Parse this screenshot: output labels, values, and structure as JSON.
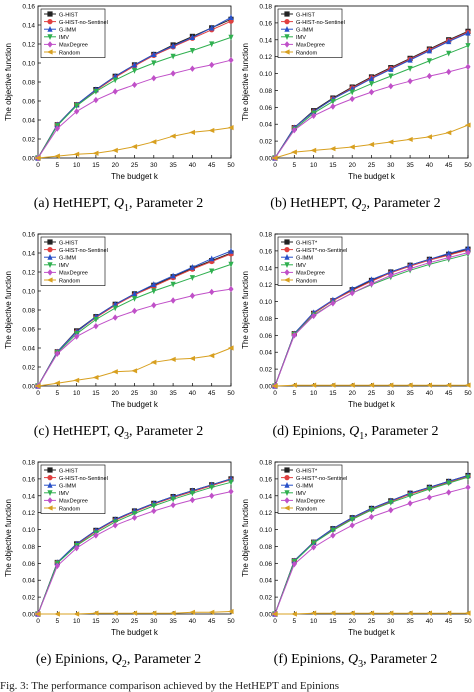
{
  "footer_fragment": "Fig. 3:  The performance comparison achieved by the HetHEPT and Epinions",
  "chart_data": [
    {
      "type": "line",
      "caption": {
        "tag": "(a)",
        "dataset": "HetHEPT,",
        "q": "Q",
        "q_sub": "1",
        "param": ", Parameter 2"
      },
      "xlabel": "The budget k",
      "ylabel": "The objective function",
      "x": [
        0,
        5,
        10,
        15,
        20,
        25,
        30,
        35,
        40,
        45,
        50
      ],
      "xticks": [
        "0",
        "5",
        "10",
        "15",
        "20",
        "25",
        "30",
        "35",
        "40",
        "45",
        "50"
      ],
      "ylim": [
        0,
        0.16
      ],
      "yticks": [
        "0.00",
        "0.02",
        "0.04",
        "0.06",
        "0.08",
        "0.10",
        "0.12",
        "0.14",
        "0.16"
      ],
      "legend": "top-left",
      "grid": false,
      "series": [
        {
          "name": "G-HIST",
          "color": "#222222",
          "marker": "square",
          "values": [
            0.0,
            0.035,
            0.056,
            0.072,
            0.086,
            0.098,
            0.109,
            0.119,
            0.128,
            0.137,
            0.146
          ]
        },
        {
          "name": "G-HIST-no-Sentinel",
          "color": "#e04040",
          "marker": "circle",
          "values": [
            0.0,
            0.035,
            0.056,
            0.071,
            0.085,
            0.097,
            0.108,
            0.117,
            0.126,
            0.135,
            0.144
          ]
        },
        {
          "name": "G-IMM",
          "color": "#2850c8",
          "marker": "triangle",
          "values": [
            0.0,
            0.035,
            0.056,
            0.072,
            0.086,
            0.098,
            0.109,
            0.118,
            0.127,
            0.137,
            0.148
          ]
        },
        {
          "name": "IMV",
          "color": "#30b050",
          "marker": "tri-down",
          "values": [
            0.0,
            0.034,
            0.055,
            0.07,
            0.082,
            0.092,
            0.1,
            0.107,
            0.113,
            0.12,
            0.127
          ]
        },
        {
          "name": "MaxDegree",
          "color": "#c050c8",
          "marker": "diamond",
          "values": [
            0.0,
            0.031,
            0.049,
            0.061,
            0.07,
            0.077,
            0.084,
            0.089,
            0.094,
            0.098,
            0.103
          ]
        },
        {
          "name": "Random",
          "color": "#d8a020",
          "marker": "tri-left",
          "values": [
            0.0,
            0.002,
            0.004,
            0.005,
            0.008,
            0.012,
            0.017,
            0.023,
            0.027,
            0.029,
            0.032
          ]
        }
      ]
    },
    {
      "type": "line",
      "caption": {
        "tag": "(b)",
        "dataset": "HetHEPT,",
        "q": "Q",
        "q_sub": "2",
        "param": ", Parameter 2"
      },
      "xlabel": "The budget k",
      "ylabel": "The objective function",
      "x": [
        0,
        5,
        10,
        15,
        20,
        25,
        30,
        35,
        40,
        45,
        50
      ],
      "xticks": [
        "0",
        "5",
        "10",
        "15",
        "20",
        "25",
        "30",
        "35",
        "40",
        "45",
        "50"
      ],
      "ylim": [
        0,
        0.18
      ],
      "yticks": [
        "0.00",
        "0.02",
        "0.04",
        "0.06",
        "0.08",
        "0.10",
        "0.12",
        "0.14",
        "0.16",
        "0.18"
      ],
      "legend": "top-left",
      "grid": false,
      "series": [
        {
          "name": "G-HIST",
          "color": "#222222",
          "marker": "square",
          "values": [
            0.0,
            0.036,
            0.056,
            0.071,
            0.084,
            0.096,
            0.107,
            0.118,
            0.129,
            0.14,
            0.15
          ]
        },
        {
          "name": "G-HIST-no-Sentinel",
          "color": "#e04040",
          "marker": "circle",
          "values": [
            0.0,
            0.036,
            0.055,
            0.07,
            0.083,
            0.095,
            0.106,
            0.117,
            0.128,
            0.139,
            0.149
          ]
        },
        {
          "name": "G-IMM",
          "color": "#2850c8",
          "marker": "triangle",
          "values": [
            0.0,
            0.036,
            0.055,
            0.07,
            0.082,
            0.094,
            0.105,
            0.116,
            0.127,
            0.138,
            0.148
          ]
        },
        {
          "name": "IMV",
          "color": "#30b050",
          "marker": "tri-down",
          "values": [
            0.0,
            0.034,
            0.053,
            0.067,
            0.078,
            0.088,
            0.097,
            0.106,
            0.115,
            0.124,
            0.133
          ]
        },
        {
          "name": "MaxDegree",
          "color": "#c050c8",
          "marker": "diamond",
          "values": [
            0.0,
            0.033,
            0.05,
            0.061,
            0.07,
            0.078,
            0.085,
            0.091,
            0.097,
            0.102,
            0.108
          ]
        },
        {
          "name": "Random",
          "color": "#d8a020",
          "marker": "tri-left",
          "values": [
            0.0,
            0.007,
            0.009,
            0.011,
            0.013,
            0.016,
            0.019,
            0.022,
            0.025,
            0.03,
            0.039
          ]
        }
      ]
    },
    {
      "type": "line",
      "caption": {
        "tag": "(c)",
        "dataset": "HetHEPT,",
        "q": "Q",
        "q_sub": "3",
        "param": ", Parameter 2"
      },
      "xlabel": "The budget k",
      "ylabel": "The objective function",
      "x": [
        0,
        5,
        10,
        15,
        20,
        25,
        30,
        35,
        40,
        45,
        50
      ],
      "xticks": [
        "0",
        "5",
        "10",
        "15",
        "20",
        "25",
        "30",
        "35",
        "40",
        "45",
        "50"
      ],
      "ylim": [
        0,
        0.16
      ],
      "yticks": [
        "0.00",
        "0.02",
        "0.04",
        "0.06",
        "0.08",
        "0.10",
        "0.12",
        "0.14",
        "0.16"
      ],
      "legend": "top-left",
      "grid": false,
      "series": [
        {
          "name": "G-HIST",
          "color": "#222222",
          "marker": "square",
          "values": [
            0.0,
            0.036,
            0.058,
            0.073,
            0.086,
            0.097,
            0.106,
            0.115,
            0.124,
            0.132,
            0.14
          ]
        },
        {
          "name": "G-HIST-no-Sentinel",
          "color": "#e04040",
          "marker": "circle",
          "values": [
            0.0,
            0.036,
            0.057,
            0.072,
            0.085,
            0.096,
            0.105,
            0.114,
            0.123,
            0.131,
            0.139
          ]
        },
        {
          "name": "G-IMM",
          "color": "#2850c8",
          "marker": "triangle",
          "values": [
            0.0,
            0.036,
            0.057,
            0.073,
            0.086,
            0.097,
            0.107,
            0.116,
            0.125,
            0.134,
            0.142
          ]
        },
        {
          "name": "IMV",
          "color": "#30b050",
          "marker": "tri-down",
          "values": [
            0.0,
            0.035,
            0.055,
            0.07,
            0.082,
            0.092,
            0.1,
            0.107,
            0.114,
            0.121,
            0.128
          ]
        },
        {
          "name": "MaxDegree",
          "color": "#c050c8",
          "marker": "diamond",
          "values": [
            0.0,
            0.034,
            0.052,
            0.063,
            0.072,
            0.079,
            0.085,
            0.09,
            0.095,
            0.099,
            0.102
          ]
        },
        {
          "name": "Random",
          "color": "#d8a020",
          "marker": "tri-left",
          "values": [
            0.0,
            0.003,
            0.006,
            0.009,
            0.015,
            0.016,
            0.025,
            0.028,
            0.029,
            0.032,
            0.04
          ]
        }
      ]
    },
    {
      "type": "line",
      "caption": {
        "tag": "(d)",
        "dataset": "Epinions,",
        "q": "Q",
        "q_sub": "1",
        "param": ", Parameter 2"
      },
      "xlabel": "The budget k",
      "ylabel": "The objective function",
      "x": [
        0,
        5,
        10,
        15,
        20,
        25,
        30,
        35,
        40,
        45,
        50
      ],
      "xticks": [
        "0",
        "5",
        "10",
        "15",
        "20",
        "25",
        "30",
        "35",
        "40",
        "45",
        "50"
      ],
      "ylim": [
        0,
        0.18
      ],
      "yticks": [
        "0.00",
        "0.02",
        "0.04",
        "0.06",
        "0.08",
        "0.10",
        "0.12",
        "0.14",
        "0.16",
        "0.18"
      ],
      "legend": "top-left",
      "grid": false,
      "series": [
        {
          "name": "G-HIST*",
          "color": "#222222",
          "marker": "square",
          "values": [
            0.0,
            0.062,
            0.086,
            0.101,
            0.114,
            0.125,
            0.135,
            0.143,
            0.15,
            0.156,
            0.162
          ]
        },
        {
          "name": "G-HIST*-no-Sentinel",
          "color": "#e04040",
          "marker": "circle",
          "values": [
            0.0,
            0.062,
            0.086,
            0.101,
            0.113,
            0.124,
            0.134,
            0.142,
            0.149,
            0.155,
            0.161
          ]
        },
        {
          "name": "G-IMM",
          "color": "#2850c8",
          "marker": "triangle",
          "values": [
            0.0,
            0.062,
            0.087,
            0.102,
            0.115,
            0.126,
            0.135,
            0.143,
            0.15,
            0.157,
            0.163
          ]
        },
        {
          "name": "IMV",
          "color": "#30b050",
          "marker": "tri-down",
          "values": [
            0.0,
            0.061,
            0.084,
            0.098,
            0.11,
            0.12,
            0.129,
            0.137,
            0.144,
            0.15,
            0.156
          ]
        },
        {
          "name": "MaxDegree",
          "color": "#c050c8",
          "marker": "diamond",
          "values": [
            0.0,
            0.06,
            0.083,
            0.098,
            0.11,
            0.121,
            0.131,
            0.139,
            0.146,
            0.152,
            0.158
          ]
        },
        {
          "name": "Random",
          "color": "#d8a020",
          "marker": "tri-left",
          "values": [
            0.0,
            0.001,
            0.001,
            0.001,
            0.001,
            0.001,
            0.001,
            0.001,
            0.001,
            0.001,
            0.001
          ]
        }
      ]
    },
    {
      "type": "line",
      "caption": {
        "tag": "(e)",
        "dataset": "Epinions,",
        "q": "Q",
        "q_sub": "2",
        "param": ", Parameter 2"
      },
      "xlabel": "The budget k",
      "ylabel": "The objective function",
      "x": [
        0,
        5,
        10,
        15,
        20,
        25,
        30,
        35,
        40,
        45,
        50
      ],
      "xticks": [
        "0",
        "5",
        "10",
        "15",
        "20",
        "25",
        "30",
        "35",
        "40",
        "45",
        "50"
      ],
      "ylim": [
        0,
        0.18
      ],
      "yticks": [
        "0.00",
        "0.02",
        "0.04",
        "0.06",
        "0.08",
        "0.10",
        "0.12",
        "0.14",
        "0.16",
        "0.18"
      ],
      "legend": "top-left",
      "grid": false,
      "series": [
        {
          "name": "G-HIST",
          "color": "#222222",
          "marker": "square",
          "values": [
            0.0,
            0.061,
            0.083,
            0.099,
            0.112,
            0.122,
            0.131,
            0.139,
            0.146,
            0.153,
            0.16
          ]
        },
        {
          "name": "G-HIST-no-Sentinel",
          "color": "#e04040",
          "marker": "circle",
          "values": [
            0.0,
            0.061,
            0.082,
            0.098,
            0.111,
            0.121,
            0.13,
            0.138,
            0.145,
            0.152,
            0.159
          ]
        },
        {
          "name": "G-IMM",
          "color": "#2850c8",
          "marker": "triangle",
          "values": [
            0.0,
            0.061,
            0.083,
            0.099,
            0.112,
            0.122,
            0.131,
            0.139,
            0.146,
            0.153,
            0.16
          ]
        },
        {
          "name": "IMV",
          "color": "#30b050",
          "marker": "tri-down",
          "values": [
            0.0,
            0.06,
            0.081,
            0.096,
            0.109,
            0.119,
            0.128,
            0.136,
            0.143,
            0.15,
            0.156
          ]
        },
        {
          "name": "MaxDegree",
          "color": "#c050c8",
          "marker": "diamond",
          "values": [
            0.0,
            0.057,
            0.078,
            0.093,
            0.105,
            0.114,
            0.122,
            0.129,
            0.135,
            0.14,
            0.145
          ]
        },
        {
          "name": "Random",
          "color": "#d8a020",
          "marker": "tri-left",
          "values": [
            0.0,
            0.0,
            0.0,
            0.001,
            0.001,
            0.001,
            0.001,
            0.001,
            0.002,
            0.002,
            0.003
          ]
        }
      ]
    },
    {
      "type": "line",
      "caption": {
        "tag": "(f)",
        "dataset": "Epinions,",
        "q": "Q",
        "q_sub": "3",
        "param": ", Parameter 2"
      },
      "xlabel": "The budget k",
      "ylabel": "The objective function",
      "x": [
        0,
        5,
        10,
        15,
        20,
        25,
        30,
        35,
        40,
        45,
        50
      ],
      "xticks": [
        "0",
        "5",
        "10",
        "15",
        "20",
        "25",
        "30",
        "35",
        "40",
        "45",
        "50"
      ],
      "ylim": [
        0,
        0.18
      ],
      "yticks": [
        "0.00",
        "0.02",
        "0.04",
        "0.06",
        "0.08",
        "0.10",
        "0.12",
        "0.14",
        "0.16",
        "0.18"
      ],
      "legend": "top-left",
      "grid": false,
      "series": [
        {
          "name": "G-HIST*",
          "color": "#222222",
          "marker": "square",
          "values": [
            0.0,
            0.063,
            0.085,
            0.101,
            0.114,
            0.125,
            0.134,
            0.143,
            0.15,
            0.157,
            0.164
          ]
        },
        {
          "name": "G-HIST*-no-Sentinel",
          "color": "#e04040",
          "marker": "circle",
          "values": [
            0.0,
            0.063,
            0.085,
            0.1,
            0.113,
            0.124,
            0.133,
            0.142,
            0.149,
            0.156,
            0.163
          ]
        },
        {
          "name": "G-IMM",
          "color": "#2850c8",
          "marker": "triangle",
          "values": [
            0.0,
            0.063,
            0.085,
            0.101,
            0.114,
            0.125,
            0.134,
            0.143,
            0.15,
            0.157,
            0.164
          ]
        },
        {
          "name": "IMV",
          "color": "#30b050",
          "marker": "tri-down",
          "values": [
            0.0,
            0.062,
            0.084,
            0.099,
            0.112,
            0.123,
            0.132,
            0.14,
            0.148,
            0.155,
            0.162
          ]
        },
        {
          "name": "MaxDegree",
          "color": "#c050c8",
          "marker": "diamond",
          "values": [
            0.0,
            0.059,
            0.079,
            0.093,
            0.105,
            0.115,
            0.123,
            0.131,
            0.138,
            0.144,
            0.15
          ]
        },
        {
          "name": "Random",
          "color": "#d8a020",
          "marker": "tri-left",
          "values": [
            0.0,
            0.0,
            0.001,
            0.001,
            0.001,
            0.001,
            0.001,
            0.001,
            0.001,
            0.001,
            0.001
          ]
        }
      ]
    }
  ]
}
